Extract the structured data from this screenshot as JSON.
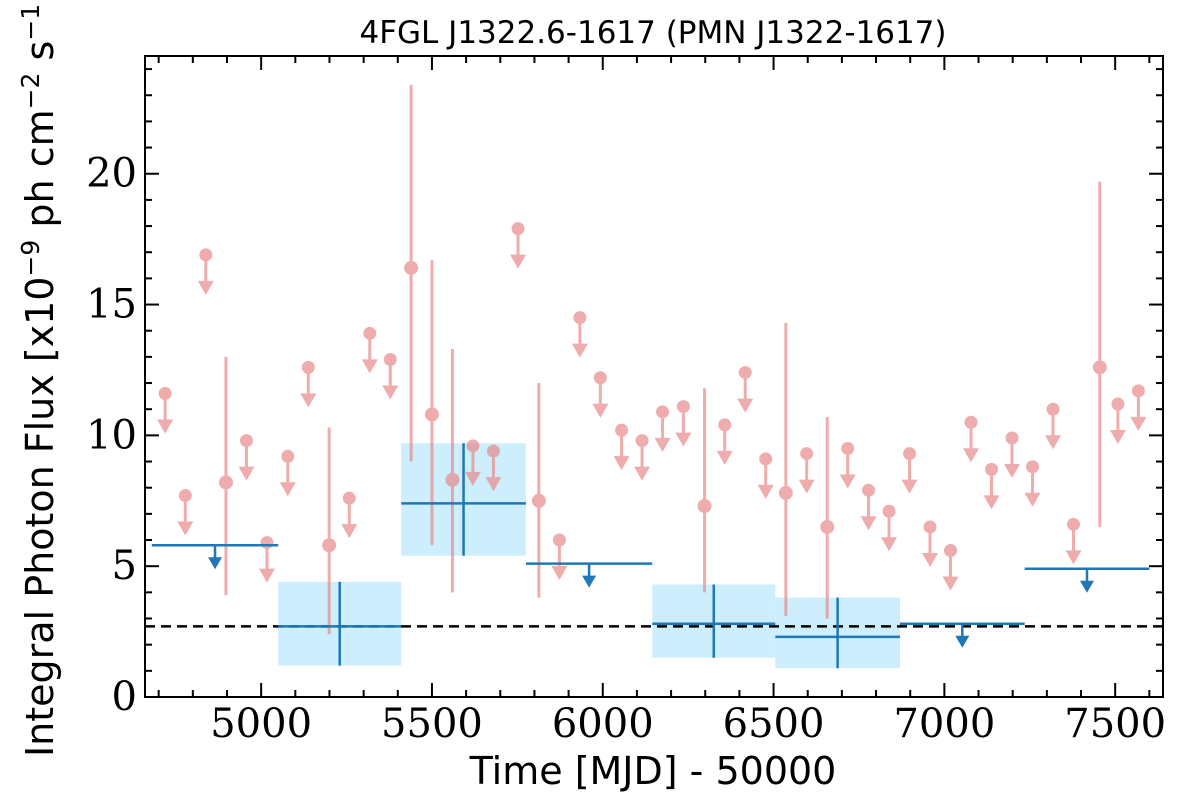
{
  "chart_data": {
    "type": "scatter",
    "title": "4FGL J1322.6-1617 (PMN J1322-1617)",
    "xlabel": "Time [MJD] - 50000",
    "ylabel": "Integral Photon Flux [x10",
    "ylabel_exp1": "−9",
    "ylabel_mid": " ph cm",
    "ylabel_exp2": "−2",
    "ylabel_mid2": " s",
    "ylabel_exp3": "−1",
    "ylabel_end": "]",
    "xlim": [
      4660,
      7640
    ],
    "ylim": [
      0,
      24.5
    ],
    "xticks": [
      5000,
      5500,
      6000,
      6500,
      7000,
      7500
    ],
    "yticks": [
      0,
      5,
      10,
      15,
      20
    ],
    "grid": false,
    "colors": {
      "short_bin": "#e88a8a",
      "long_bin": "#1f77b4",
      "long_band": "#cdeefc",
      "reference": "#000000"
    },
    "reference_line": 2.7,
    "series": [
      {
        "role": "short_bins",
        "detections": [
          {
            "x": 4897,
            "y": 8.2,
            "lo": 3.9,
            "hi": 13.0
          },
          {
            "x": 5199,
            "y": 5.8,
            "lo": 2.4,
            "hi": 10.3
          },
          {
            "x": 5439,
            "y": 16.4,
            "lo": 9.0,
            "hi": 23.4
          },
          {
            "x": 5500,
            "y": 10.8,
            "lo": 5.8,
            "hi": 16.7
          },
          {
            "x": 5560,
            "y": 8.3,
            "lo": 4.0,
            "hi": 13.3
          },
          {
            "x": 5813,
            "y": 7.5,
            "lo": 3.8,
            "hi": 12.0
          },
          {
            "x": 6298,
            "y": 7.3,
            "lo": 4.0,
            "hi": 11.8
          },
          {
            "x": 6536,
            "y": 7.8,
            "lo": 3.1,
            "hi": 14.3
          },
          {
            "x": 6657,
            "y": 6.5,
            "lo": 3.0,
            "hi": 10.7
          },
          {
            "x": 7455,
            "y": 12.6,
            "lo": 6.5,
            "hi": 19.7
          }
        ],
        "upper_limits": [
          {
            "x": 4719,
            "y": 11.6
          },
          {
            "x": 4778,
            "y": 7.7
          },
          {
            "x": 4838,
            "y": 16.9
          },
          {
            "x": 4957,
            "y": 9.8
          },
          {
            "x": 5017,
            "y": 5.9
          },
          {
            "x": 5078,
            "y": 9.2
          },
          {
            "x": 5138,
            "y": 12.6
          },
          {
            "x": 5258,
            "y": 7.6
          },
          {
            "x": 5318,
            "y": 13.9
          },
          {
            "x": 5378,
            "y": 12.9
          },
          {
            "x": 5620,
            "y": 9.6
          },
          {
            "x": 5680,
            "y": 9.4
          },
          {
            "x": 5752,
            "y": 17.9
          },
          {
            "x": 5873,
            "y": 6.0
          },
          {
            "x": 5933,
            "y": 14.5
          },
          {
            "x": 5993,
            "y": 12.2
          },
          {
            "x": 6055,
            "y": 10.2
          },
          {
            "x": 6115,
            "y": 9.8
          },
          {
            "x": 6175,
            "y": 10.9
          },
          {
            "x": 6236,
            "y": 11.1
          },
          {
            "x": 6357,
            "y": 10.4
          },
          {
            "x": 6417,
            "y": 12.4
          },
          {
            "x": 6477,
            "y": 9.1
          },
          {
            "x": 6597,
            "y": 9.3
          },
          {
            "x": 6717,
            "y": 9.5
          },
          {
            "x": 6778,
            "y": 7.9
          },
          {
            "x": 6838,
            "y": 7.1
          },
          {
            "x": 6898,
            "y": 9.3
          },
          {
            "x": 6958,
            "y": 6.5
          },
          {
            "x": 7018,
            "y": 5.6
          },
          {
            "x": 7078,
            "y": 10.5
          },
          {
            "x": 7138,
            "y": 8.7
          },
          {
            "x": 7198,
            "y": 9.9
          },
          {
            "x": 7258,
            "y": 8.8
          },
          {
            "x": 7318,
            "y": 11.0
          },
          {
            "x": 7378,
            "y": 6.6
          },
          {
            "x": 7508,
            "y": 11.2
          },
          {
            "x": 7568,
            "y": 11.7
          }
        ]
      },
      {
        "role": "long_bins",
        "detections": [
          {
            "x0": 5050,
            "x1": 5410,
            "y": 2.7,
            "lo": 1.2,
            "hi": 4.4
          },
          {
            "x0": 5410,
            "x1": 5775,
            "y": 7.4,
            "lo": 5.4,
            "hi": 9.7
          },
          {
            "x0": 6145,
            "x1": 6505,
            "y": 2.8,
            "lo": 1.5,
            "hi": 4.3
          },
          {
            "x0": 6505,
            "x1": 6870,
            "y": 2.3,
            "lo": 1.1,
            "hi": 3.8
          }
        ],
        "upper_limits": [
          {
            "x0": 4680,
            "x1": 5050,
            "y": 5.8
          },
          {
            "x0": 5775,
            "x1": 6145,
            "y": 5.1
          },
          {
            "x0": 6870,
            "x1": 7235,
            "y": 2.8
          },
          {
            "x0": 7235,
            "x1": 7600,
            "y": 4.9
          }
        ]
      }
    ]
  }
}
